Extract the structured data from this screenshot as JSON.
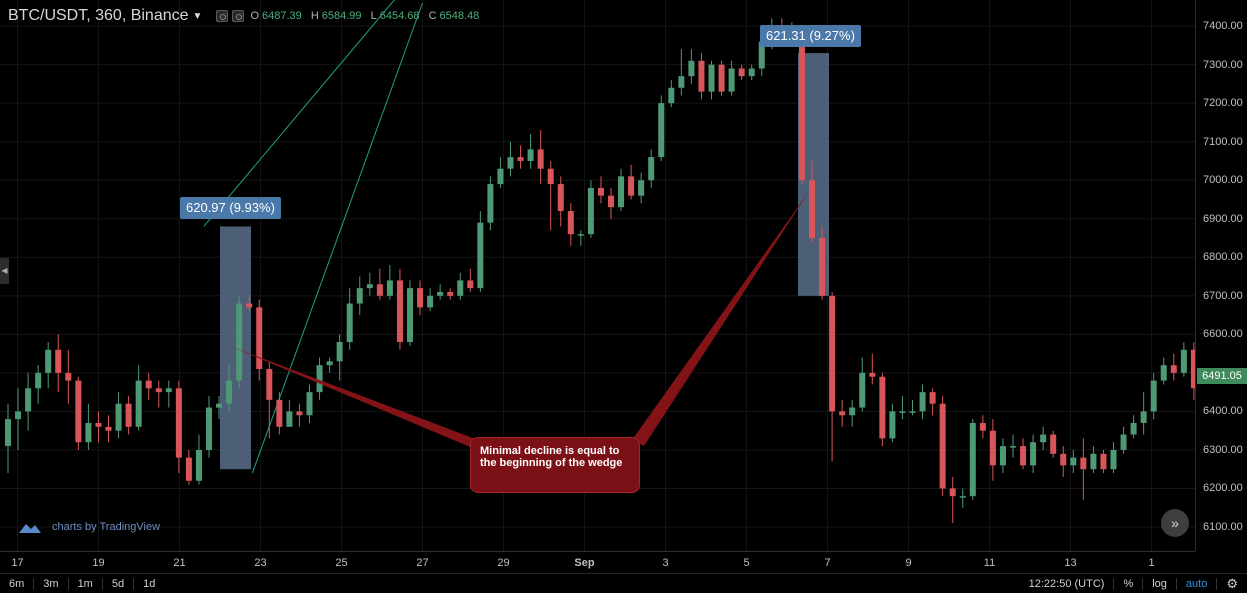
{
  "header": {
    "symbol": "BTC/USDT, 360, Binance",
    "ohlc": [
      {
        "key": "O",
        "value": "6487.39"
      },
      {
        "key": "H",
        "value": "6584.99"
      },
      {
        "key": "L",
        "value": "6454.68"
      },
      {
        "key": "C",
        "value": "6548.48"
      }
    ]
  },
  "colors": {
    "up": "#4f9a76",
    "down": "#d8565a",
    "trendline": "#1fa08a",
    "measure": "#5a6e8c",
    "callout": "#4a78a8",
    "annotation": "#7b1016",
    "price_tag": "#3f8a5b"
  },
  "chart_data": {
    "type": "candlestick",
    "title": "",
    "price_range": [
      6060,
      7450
    ],
    "y_ticks": [
      6100,
      6200,
      6300,
      6400,
      6500,
      6600,
      6700,
      6800,
      6900,
      7000,
      7100,
      7200,
      7300,
      7400
    ],
    "x_ticks": [
      "17",
      "19",
      "21",
      "23",
      "25",
      "27",
      "29",
      "Sep",
      "3",
      "5",
      "7",
      "9",
      "11",
      "13",
      "1"
    ],
    "last_price": "6491.05",
    "candles": [
      [
        6310,
        6380,
        6240,
        6420
      ],
      [
        6380,
        6400,
        6300,
        6460
      ],
      [
        6400,
        6460,
        6350,
        6500
      ],
      [
        6460,
        6500,
        6420,
        6520
      ],
      [
        6500,
        6560,
        6460,
        6580
      ],
      [
        6560,
        6500,
        6450,
        6600
      ],
      [
        6500,
        6480,
        6420,
        6560
      ],
      [
        6480,
        6320,
        6300,
        6490
      ],
      [
        6320,
        6370,
        6300,
        6420
      ],
      [
        6370,
        6360,
        6320,
        6400
      ],
      [
        6360,
        6350,
        6320,
        6390
      ],
      [
        6350,
        6420,
        6330,
        6450
      ],
      [
        6420,
        6360,
        6340,
        6440
      ],
      [
        6360,
        6480,
        6350,
        6520
      ],
      [
        6480,
        6460,
        6430,
        6500
      ],
      [
        6460,
        6450,
        6410,
        6480
      ],
      [
        6450,
        6460,
        6410,
        6480
      ],
      [
        6460,
        6280,
        6240,
        6480
      ],
      [
        6280,
        6220,
        6210,
        6300
      ],
      [
        6220,
        6300,
        6210,
        6340
      ],
      [
        6300,
        6410,
        6280,
        6440
      ],
      [
        6410,
        6420,
        6380,
        6440
      ],
      [
        6420,
        6480,
        6400,
        6520
      ],
      [
        6480,
        6680,
        6460,
        6700
      ],
      [
        6680,
        6670,
        6660,
        6700
      ],
      [
        6670,
        6510,
        6480,
        6690
      ],
      [
        6510,
        6430,
        6330,
        6530
      ],
      [
        6430,
        6360,
        6340,
        6450
      ],
      [
        6360,
        6400,
        6360,
        6430
      ],
      [
        6400,
        6390,
        6360,
        6420
      ],
      [
        6390,
        6450,
        6370,
        6470
      ],
      [
        6450,
        6520,
        6430,
        6540
      ],
      [
        6520,
        6530,
        6500,
        6540
      ],
      [
        6530,
        6580,
        6480,
        6600
      ],
      [
        6580,
        6680,
        6560,
        6720
      ],
      [
        6680,
        6720,
        6650,
        6750
      ],
      [
        6720,
        6730,
        6700,
        6760
      ],
      [
        6730,
        6700,
        6690,
        6770
      ],
      [
        6700,
        6740,
        6690,
        6780
      ],
      [
        6740,
        6580,
        6560,
        6770
      ],
      [
        6580,
        6720,
        6570,
        6740
      ],
      [
        6720,
        6670,
        6650,
        6740
      ],
      [
        6670,
        6700,
        6660,
        6720
      ],
      [
        6700,
        6710,
        6690,
        6730
      ],
      [
        6710,
        6700,
        6690,
        6720
      ],
      [
        6700,
        6740,
        6690,
        6760
      ],
      [
        6740,
        6720,
        6710,
        6770
      ],
      [
        6720,
        6890,
        6710,
        6920
      ],
      [
        6890,
        6990,
        6870,
        7010
      ],
      [
        6990,
        7030,
        6980,
        7060
      ],
      [
        7030,
        7060,
        7010,
        7100
      ],
      [
        7060,
        7050,
        7030,
        7090
      ],
      [
        7050,
        7080,
        7030,
        7120
      ],
      [
        7080,
        7030,
        6990,
        7130
      ],
      [
        7030,
        6990,
        6870,
        7050
      ],
      [
        6990,
        6920,
        6880,
        7010
      ],
      [
        6920,
        6860,
        6830,
        6940
      ],
      [
        6860,
        6860,
        6830,
        6870
      ],
      [
        6860,
        6980,
        6850,
        7000
      ],
      [
        6980,
        6960,
        6940,
        7010
      ],
      [
        6960,
        6930,
        6900,
        6980
      ],
      [
        6930,
        7010,
        6920,
        7030
      ],
      [
        7010,
        6960,
        6950,
        7040
      ],
      [
        6960,
        7000,
        6940,
        7020
      ],
      [
        7000,
        7060,
        6980,
        7080
      ],
      [
        7060,
        7200,
        7050,
        7220
      ],
      [
        7200,
        7240,
        7190,
        7260
      ],
      [
        7240,
        7270,
        7220,
        7340
      ],
      [
        7270,
        7310,
        7250,
        7340
      ],
      [
        7310,
        7230,
        7210,
        7330
      ],
      [
        7230,
        7300,
        7210,
        7310
      ],
      [
        7300,
        7230,
        7220,
        7310
      ],
      [
        7230,
        7290,
        7220,
        7310
      ],
      [
        7290,
        7270,
        7260,
        7300
      ],
      [
        7270,
        7290,
        7260,
        7300
      ],
      [
        7290,
        7360,
        7270,
        7400
      ],
      [
        7360,
        7400,
        7340,
        7420
      ],
      [
        7400,
        7380,
        7350,
        7420
      ],
      [
        7380,
        7390,
        7360,
        7410
      ],
      [
        7390,
        7000,
        6990,
        7400
      ],
      [
        7000,
        6850,
        6840,
        7050
      ],
      [
        6850,
        6700,
        6690,
        6880
      ],
      [
        6700,
        6400,
        6270,
        6710
      ],
      [
        6400,
        6390,
        6360,
        6430
      ],
      [
        6390,
        6410,
        6360,
        6430
      ],
      [
        6410,
        6500,
        6400,
        6540
      ],
      [
        6500,
        6490,
        6470,
        6550
      ],
      [
        6490,
        6330,
        6310,
        6500
      ],
      [
        6330,
        6400,
        6320,
        6420
      ],
      [
        6400,
        6400,
        6380,
        6440
      ],
      [
        6400,
        6400,
        6390,
        6430
      ],
      [
        6400,
        6450,
        6380,
        6470
      ],
      [
        6450,
        6420,
        6390,
        6460
      ],
      [
        6420,
        6200,
        6180,
        6440
      ],
      [
        6200,
        6180,
        6110,
        6230
      ],
      [
        6180,
        6180,
        6150,
        6200
      ],
      [
        6180,
        6370,
        6170,
        6380
      ],
      [
        6370,
        6350,
        6330,
        6390
      ],
      [
        6350,
        6260,
        6220,
        6380
      ],
      [
        6260,
        6310,
        6240,
        6330
      ],
      [
        6310,
        6310,
        6280,
        6340
      ],
      [
        6310,
        6260,
        6250,
        6330
      ],
      [
        6260,
        6320,
        6240,
        6340
      ],
      [
        6320,
        6340,
        6300,
        6360
      ],
      [
        6340,
        6290,
        6280,
        6350
      ],
      [
        6290,
        6260,
        6230,
        6310
      ],
      [
        6260,
        6280,
        6240,
        6300
      ],
      [
        6280,
        6250,
        6170,
        6330
      ],
      [
        6250,
        6290,
        6240,
        6310
      ],
      [
        6290,
        6250,
        6240,
        6300
      ],
      [
        6250,
        6300,
        6240,
        6320
      ],
      [
        6300,
        6340,
        6290,
        6360
      ],
      [
        6340,
        6370,
        6330,
        6390
      ],
      [
        6370,
        6400,
        6340,
        6450
      ],
      [
        6400,
        6480,
        6380,
        6500
      ],
      [
        6480,
        6520,
        6470,
        6540
      ],
      [
        6520,
        6500,
        6480,
        6550
      ],
      [
        6500,
        6560,
        6490,
        6580
      ],
      [
        6560,
        6460,
        6430,
        6580
      ],
      [
        6460,
        6450,
        6420,
        6480
      ],
      [
        6450,
        6480,
        6440,
        6500
      ],
      [
        6480,
        6490,
        6460,
        6500
      ]
    ],
    "wedge": {
      "upper": [
        [
          21.6,
          6880
        ],
        [
          26.4,
          7480
        ]
      ],
      "lower": [
        [
          22.8,
          6240
        ],
        [
          27.0,
          7460
        ]
      ]
    },
    "measurements": [
      {
        "label": "620.97 (9.93%)",
        "top": 6880,
        "bottom": 6250
      },
      {
        "label": "621.31 (9.27%)",
        "top": 7330,
        "bottom": 6700
      }
    ],
    "annotation": {
      "text": "Minimal decline is equal to the beginning of the wedge"
    }
  },
  "branding": {
    "text": "charts by TradingView"
  },
  "toolbar": {
    "timeframes": [
      "6m",
      "3m",
      "1m",
      "5d",
      "1d"
    ],
    "clock": "12:22:50 (UTC)",
    "percent": "%",
    "log": "log",
    "auto": "auto"
  }
}
